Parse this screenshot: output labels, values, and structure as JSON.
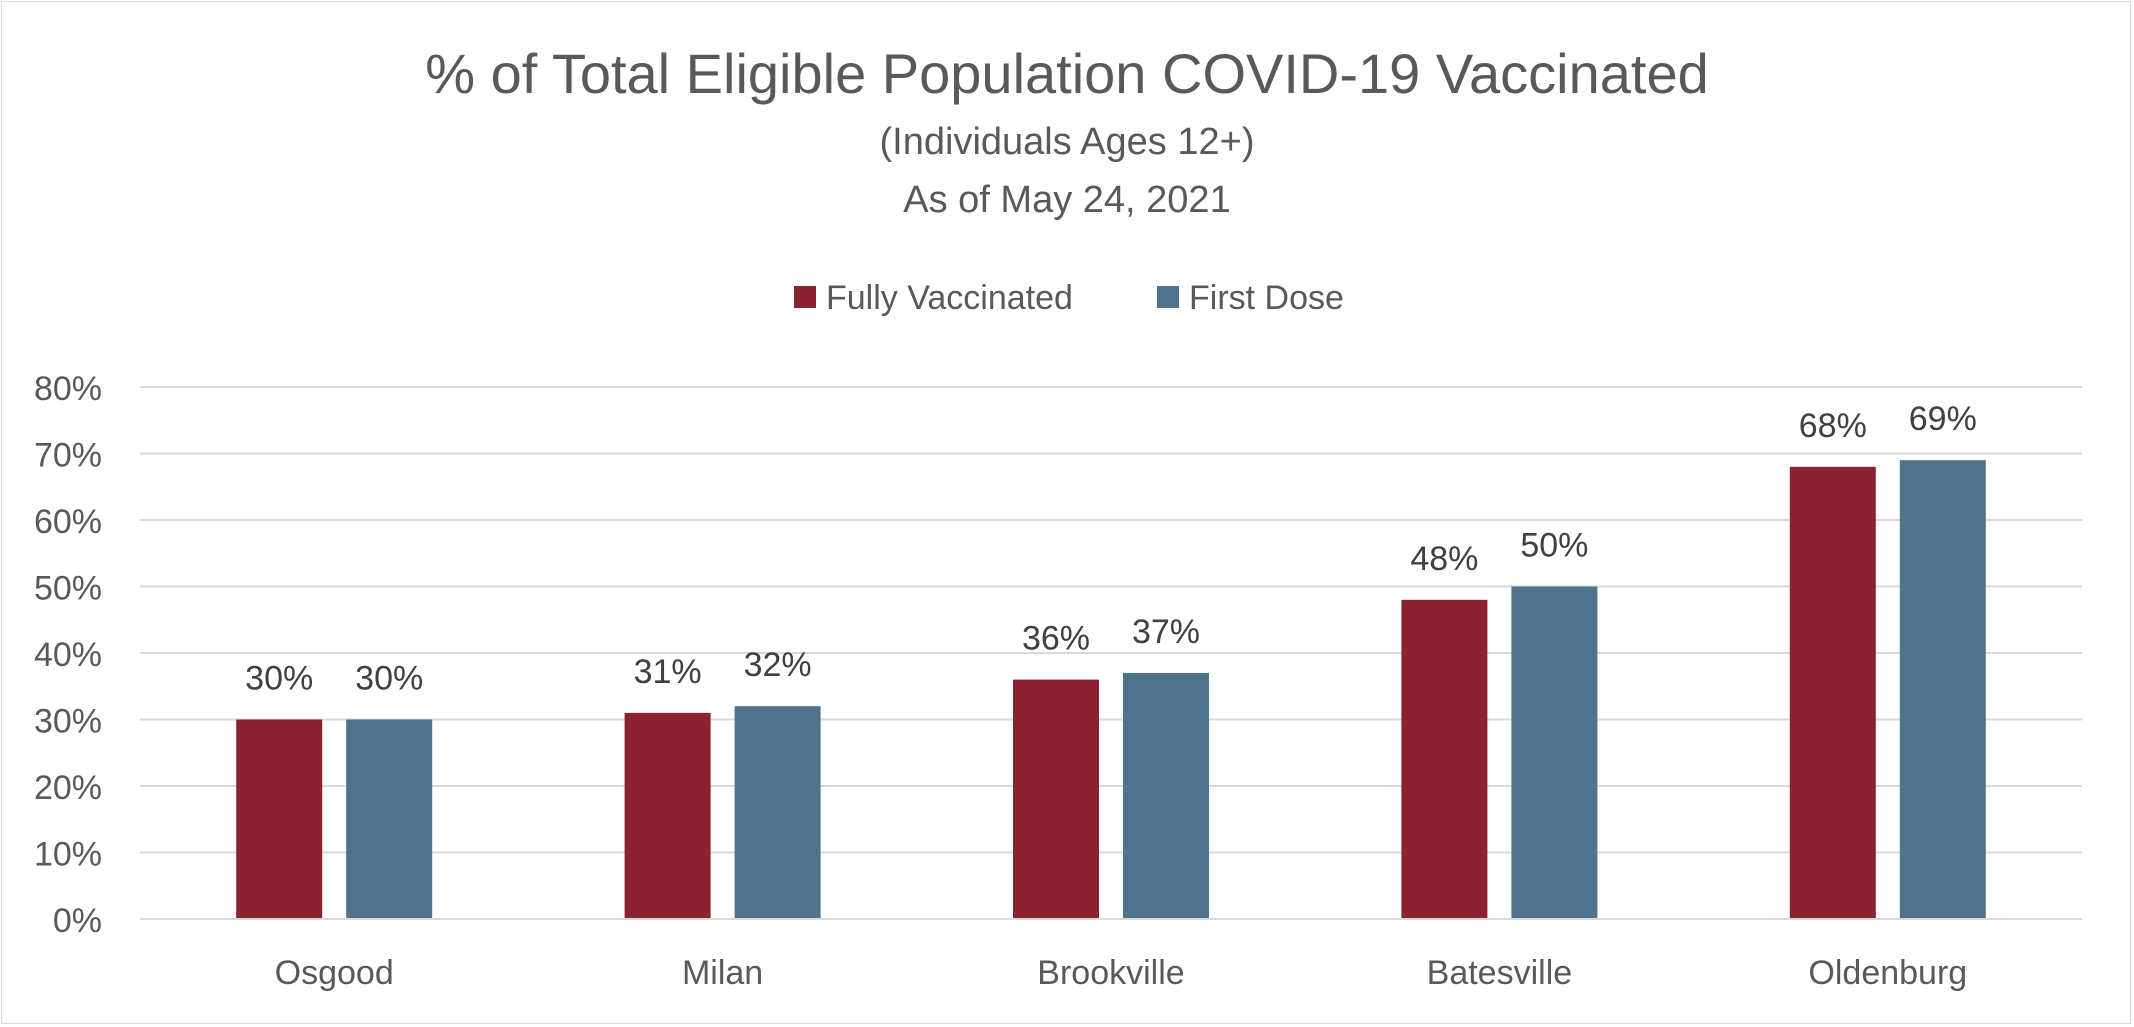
{
  "chart_data": {
    "type": "bar",
    "title": "% of Total Eligible Population COVID-19 Vaccinated",
    "subtitle_lines": [
      "(Individuals Ages 12+)",
      "As of May 24, 2021"
    ],
    "xlabel": "",
    "ylabel": "",
    "categories": [
      "Osgood",
      "Milan",
      "Brookville",
      "Batesville",
      "Oldenburg"
    ],
    "series": [
      {
        "name": "Fully Vaccinated",
        "values": [
          30,
          31,
          36,
          48,
          68
        ],
        "color": "#8b2232"
      },
      {
        "name": "First Dose",
        "values": [
          30,
          32,
          37,
          50,
          69
        ],
        "color": "#4f738c"
      }
    ],
    "ylim": [
      0,
      80
    ],
    "yticks": [
      0,
      10,
      20,
      30,
      40,
      50,
      60,
      70,
      80
    ],
    "ytick_labels": [
      "0%",
      "10%",
      "20%",
      "30%",
      "40%",
      "50%",
      "60%",
      "70%",
      "80%"
    ],
    "data_labels": [
      [
        "30%",
        "31%",
        "36%",
        "48%",
        "68%"
      ],
      [
        "30%",
        "32%",
        "37%",
        "50%",
        "69%"
      ]
    ],
    "legend_position": "top-center",
    "grid": true,
    "colors": {
      "gridline": "#d9d9d9",
      "text": "#595959",
      "label_text": "#404040"
    }
  }
}
